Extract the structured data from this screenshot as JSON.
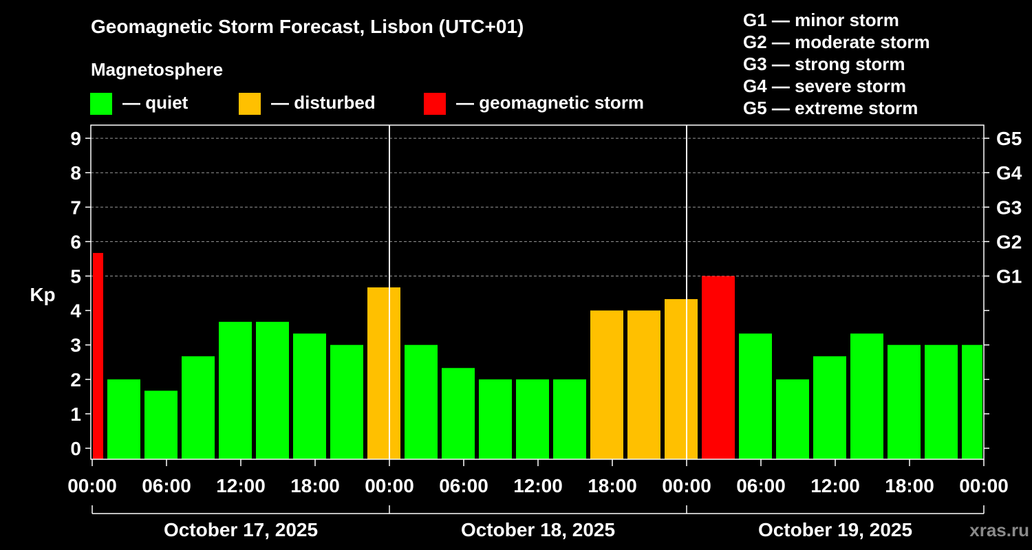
{
  "chart_data": {
    "type": "bar",
    "title": "Geomagnetic Storm Forecast, Lisbon (UTC+01)",
    "ylabel": "Kp",
    "ylim": [
      0,
      9
    ],
    "yticks": [
      "0",
      "1",
      "2",
      "3",
      "4",
      "5",
      "6",
      "7",
      "8",
      "9"
    ],
    "right_axis_ticks": [
      {
        "kp": 5,
        "label": "G1"
      },
      {
        "kp": 6,
        "label": "G2"
      },
      {
        "kp": 7,
        "label": "G3"
      },
      {
        "kp": 8,
        "label": "G4"
      },
      {
        "kp": 9,
        "label": "G5"
      }
    ],
    "grid": "dashed horizontal at Kp 5-9",
    "legend": {
      "title": "Magnetosphere",
      "entries": [
        {
          "label": "— quiet",
          "color": "#00ff00"
        },
        {
          "label": "— disturbed",
          "color": "#ffc000"
        },
        {
          "label": "— geomagnetic storm",
          "color": "#ff0000"
        }
      ]
    },
    "storm_scale": [
      "G1 — minor storm",
      "G2 — moderate storm",
      "G3 — strong storm",
      "G4 — severe storm",
      "G5 — extreme storm"
    ],
    "xtick_labels": [
      "00:00",
      "06:00",
      "12:00",
      "18:00",
      "00:00",
      "06:00",
      "12:00",
      "18:00",
      "00:00",
      "06:00",
      "12:00",
      "18:00",
      "00:00"
    ],
    "days": [
      "October 17, 2025",
      "October 18, 2025",
      "October 19, 2025"
    ],
    "bars": [
      {
        "start_hour": 0,
        "end_hour": 1,
        "kp": 5.67,
        "level": "storm"
      },
      {
        "start_hour": 1,
        "end_hour": 4,
        "kp": 2.0,
        "level": "quiet"
      },
      {
        "start_hour": 4,
        "end_hour": 7,
        "kp": 1.67,
        "level": "quiet"
      },
      {
        "start_hour": 7,
        "end_hour": 10,
        "kp": 2.67,
        "level": "quiet"
      },
      {
        "start_hour": 10,
        "end_hour": 13,
        "kp": 3.67,
        "level": "quiet"
      },
      {
        "start_hour": 13,
        "end_hour": 16,
        "kp": 3.67,
        "level": "quiet"
      },
      {
        "start_hour": 16,
        "end_hour": 19,
        "kp": 3.33,
        "level": "quiet"
      },
      {
        "start_hour": 19,
        "end_hour": 22,
        "kp": 3.0,
        "level": "quiet"
      },
      {
        "start_hour": 22,
        "end_hour": 25,
        "kp": 4.67,
        "level": "disturbed"
      },
      {
        "start_hour": 25,
        "end_hour": 28,
        "kp": 3.0,
        "level": "quiet"
      },
      {
        "start_hour": 28,
        "end_hour": 31,
        "kp": 2.33,
        "level": "quiet"
      },
      {
        "start_hour": 31,
        "end_hour": 34,
        "kp": 2.0,
        "level": "quiet"
      },
      {
        "start_hour": 34,
        "end_hour": 37,
        "kp": 2.0,
        "level": "quiet"
      },
      {
        "start_hour": 37,
        "end_hour": 40,
        "kp": 2.0,
        "level": "quiet"
      },
      {
        "start_hour": 40,
        "end_hour": 43,
        "kp": 4.0,
        "level": "disturbed"
      },
      {
        "start_hour": 43,
        "end_hour": 46,
        "kp": 4.0,
        "level": "disturbed"
      },
      {
        "start_hour": 46,
        "end_hour": 49,
        "kp": 4.33,
        "level": "disturbed"
      },
      {
        "start_hour": 49,
        "end_hour": 52,
        "kp": 5.0,
        "level": "storm"
      },
      {
        "start_hour": 52,
        "end_hour": 55,
        "kp": 3.33,
        "level": "quiet"
      },
      {
        "start_hour": 55,
        "end_hour": 58,
        "kp": 2.0,
        "level": "quiet"
      },
      {
        "start_hour": 58,
        "end_hour": 61,
        "kp": 2.67,
        "level": "quiet"
      },
      {
        "start_hour": 61,
        "end_hour": 64,
        "kp": 3.33,
        "level": "quiet"
      },
      {
        "start_hour": 64,
        "end_hour": 67,
        "kp": 3.0,
        "level": "quiet"
      },
      {
        "start_hour": 67,
        "end_hour": 70,
        "kp": 3.0,
        "level": "quiet"
      },
      {
        "start_hour": 70,
        "end_hour": 72,
        "kp": 3.0,
        "level": "quiet"
      }
    ],
    "colors": {
      "quiet": "#00ff00",
      "disturbed": "#ffc000",
      "storm": "#ff0000"
    }
  },
  "watermark": "xras.ru"
}
